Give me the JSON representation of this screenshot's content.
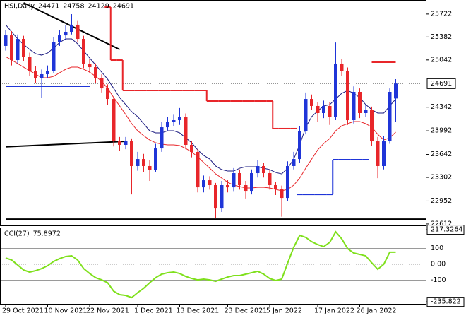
{
  "chart_data": {
    "type": "candlestick",
    "title": "HSI,Daily",
    "categories": [
      "29 Oct 2021",
      null,
      null,
      null,
      null,
      null,
      null,
      "10 Nov 2021",
      null,
      null,
      null,
      null,
      null,
      null,
      "22 Nov 2021",
      null,
      null,
      null,
      null,
      null,
      null,
      null,
      "1 Dec 2021",
      null,
      null,
      null,
      null,
      null,
      null,
      "13 Dec 2021",
      null,
      null,
      null,
      null,
      null,
      null,
      null,
      "23 Dec 2021",
      null,
      null,
      null,
      null,
      null,
      null,
      "5 Jan 2022",
      null,
      null,
      null,
      null,
      null,
      null,
      null,
      "17 Jan 2022",
      null,
      null,
      null,
      null,
      null,
      null,
      "26 Jan 2022",
      null,
      null,
      null,
      null,
      null,
      null
    ],
    "open": [
      25250,
      25406,
      25040,
      25354,
      25092,
      24883,
      24778,
      24831,
      24883,
      25302,
      25406,
      25459,
      25564,
      25354,
      24988,
      24935,
      24778,
      24621,
      24464,
      23836,
      23784,
      23836,
      23470,
      23574,
      23470,
      23417,
      23731,
      24045,
      24129,
      24150,
      24202,
      23784,
      23679,
      23155,
      23260,
      23187,
      22841,
      23187,
      23155,
      23365,
      23187,
      23103,
      23365,
      23470,
      23365,
      23187,
      23124,
      22998,
      23470,
      23574,
      23993,
      24464,
      24360,
      24255,
      24360,
      24202,
      24988,
      24883,
      24150,
      24569,
      24255,
      24307,
      23836,
      23470,
      23836,
      24471
    ],
    "high": [
      25480,
      25470,
      25420,
      25400,
      25150,
      24950,
      24900,
      24960,
      25380,
      25480,
      25560,
      25720,
      25620,
      25400,
      25060,
      24990,
      24830,
      24680,
      24500,
      23900,
      23900,
      23880,
      23680,
      23650,
      23560,
      23800,
      24120,
      24200,
      24230,
      24330,
      24250,
      23840,
      23720,
      23330,
      23320,
      23220,
      23250,
      23260,
      23440,
      23420,
      23250,
      23420,
      23560,
      23520,
      23420,
      23240,
      23180,
      23540,
      23680,
      24060,
      24560,
      24530,
      24420,
      24440,
      24420,
      25300,
      25060,
      24930,
      24650,
      24620,
      24380,
      24350,
      23900,
      23920,
      24620,
      24758
    ],
    "low": [
      25180,
      24960,
      24990,
      25020,
      24800,
      24700,
      24480,
      24780,
      24850,
      25250,
      25340,
      25420,
      25300,
      24920,
      24850,
      24700,
      24560,
      24380,
      23760,
      23700,
      23720,
      23050,
      23400,
      23380,
      23250,
      23380,
      23680,
      24000,
      24060,
      24080,
      23720,
      23600,
      23080,
      23080,
      23120,
      22700,
      22790,
      23080,
      23100,
      23120,
      22990,
      23050,
      23300,
      23300,
      23120,
      23040,
      22720,
      22950,
      23420,
      23520,
      23940,
      24300,
      24120,
      24180,
      24080,
      24150,
      24800,
      24080,
      24100,
      24180,
      24200,
      23770,
      23290,
      23420,
      23800,
      24129
    ],
    "close": [
      25406,
      25040,
      25354,
      25092,
      24883,
      24778,
      24831,
      24883,
      25302,
      25406,
      25459,
      25564,
      25354,
      24988,
      24935,
      24778,
      24621,
      24464,
      23836,
      23784,
      23836,
      23470,
      23574,
      23470,
      23417,
      23731,
      24045,
      24129,
      24150,
      24202,
      23784,
      23679,
      23155,
      23260,
      23187,
      22841,
      23187,
      23155,
      23365,
      23187,
      23103,
      23365,
      23470,
      23365,
      23187,
      23124,
      22998,
      23470,
      23574,
      23993,
      24464,
      24360,
      24255,
      24360,
      24202,
      24988,
      24883,
      24150,
      24569,
      24255,
      24307,
      23836,
      23470,
      23836,
      24569,
      24691
    ],
    "up_color": "#1f35d8",
    "down_color": "#e8262a",
    "ylim": [
      22580,
      25930
    ],
    "yticks": [
      25722,
      25382,
      25042,
      24342,
      23992,
      23642,
      23302,
      22952,
      22612
    ],
    "overlays": [
      {
        "color": "#1a1a80",
        "step": false,
        "values": [
          25564,
          25459,
          25354,
          25270,
          25197,
          25134,
          25113,
          25145,
          25218,
          25302,
          25354,
          25354,
          25281,
          25176,
          25071,
          24967,
          24862,
          24757,
          24621,
          24485,
          24380,
          24276,
          24202,
          24098,
          23993,
          23962,
          23962,
          23993,
          23993,
          23962,
          23888,
          23815,
          23710,
          23627,
          23574,
          23470,
          23417,
          23396,
          23396,
          23438,
          23459,
          23459,
          23459,
          23438,
          23417,
          23375,
          23354,
          23438,
          23574,
          23784,
          24045,
          24202,
          24286,
          24360,
          24380,
          24464,
          24548,
          24590,
          24548,
          24485,
          24380,
          24307,
          24255,
          24255,
          24360,
          24464
        ]
      },
      {
        "color": "#e8262a",
        "step": false,
        "values": [
          25092,
          25040,
          24988,
          24935,
          24883,
          24831,
          24778,
          24778,
          24799,
          24852,
          24904,
          24935,
          24935,
          24904,
          24862,
          24799,
          24726,
          24621,
          24485,
          24360,
          24234,
          24098,
          23993,
          23920,
          23857,
          23815,
          23794,
          23784,
          23784,
          23773,
          23731,
          23679,
          23606,
          23522,
          23438,
          23354,
          23292,
          23229,
          23187,
          23166,
          23145,
          23145,
          23155,
          23155,
          23145,
          23124,
          23103,
          23124,
          23187,
          23292,
          23438,
          23574,
          23710,
          23804,
          23878,
          23993,
          24066,
          24098,
          24129,
          24129,
          24098,
          24045,
          23941,
          23857,
          23888,
          23972
        ]
      },
      {
        "color": "#e8262a",
        "step": true,
        "values": [
          null,
          null,
          null,
          null,
          null,
          null,
          null,
          null,
          null,
          null,
          null,
          null,
          null,
          null,
          null,
          null,
          null,
          25825,
          25040,
          25040,
          24590,
          24590,
          24590,
          24590,
          24590,
          24590,
          24590,
          24590,
          24590,
          24590,
          24590,
          24590,
          24590,
          24590,
          24433,
          24433,
          24433,
          24433,
          24433,
          24433,
          24433,
          24433,
          24433,
          24433,
          24433,
          24025,
          24025,
          24025,
          24025,
          null,
          null,
          null,
          null,
          null,
          null,
          null,
          null,
          null,
          null,
          null,
          null,
          null,
          null,
          null,
          null,
          null
        ]
      },
      {
        "color": "#1f35d8",
        "step": true,
        "values": [
          null,
          null,
          null,
          null,
          null,
          null,
          null,
          null,
          null,
          null,
          null,
          null,
          null,
          null,
          null,
          null,
          null,
          null,
          null,
          null,
          null,
          null,
          null,
          null,
          null,
          null,
          null,
          null,
          null,
          null,
          null,
          null,
          null,
          null,
          null,
          null,
          null,
          null,
          null,
          null,
          null,
          null,
          null,
          null,
          null,
          null,
          null,
          null,
          null,
          23050,
          23050,
          23050,
          23050,
          23050,
          23050,
          23564,
          23564,
          23564,
          23564,
          23564,
          23564,
          null,
          null,
          null,
          null,
          null
        ]
      }
    ],
    "trendlines": [
      {
        "color": "#000000",
        "points": [
          [
            3,
            25888
          ],
          [
            19,
            25197
          ]
        ]
      },
      {
        "color": "#000000",
        "points": [
          [
            0,
            23755
          ],
          [
            20,
            23836
          ]
        ]
      },
      {
        "color": "#000000",
        "points": [
          [
            0,
            22684
          ],
          [
            70,
            22684
          ]
        ]
      },
      {
        "color": "#1f35d8",
        "points": [
          [
            0,
            24653
          ],
          [
            14,
            24653
          ]
        ]
      },
      {
        "color": "#e8262a",
        "points": [
          [
            61,
            25009
          ],
          [
            65,
            25009
          ]
        ]
      }
    ],
    "cci": {
      "name": "CCI(27)",
      "color": "#7fe01c",
      "values": [
        40,
        27,
        -4,
        -36,
        -49,
        -40,
        -27,
        -9,
        18,
        36,
        49,
        53,
        27,
        -27,
        -58,
        -84,
        -98,
        -116,
        -169,
        -191,
        -196,
        -209,
        -178,
        -151,
        -116,
        -84,
        -62,
        -53,
        -49,
        -58,
        -76,
        -89,
        -98,
        -93,
        -98,
        -107,
        -93,
        -80,
        -71,
        -71,
        -62,
        -53,
        -44,
        -62,
        -89,
        -102,
        -93,
        9,
        107,
        182,
        169,
        142,
        124,
        111,
        138,
        204,
        160,
        98,
        71,
        62,
        53,
        9,
        -31,
        0,
        76,
        75.8972
      ],
      "ylim": [
        -253,
        231
      ],
      "yticks": [
        217.3264,
        100,
        {
          "value": 0,
          "label": "0.00"
        },
        -100,
        -235.822
      ]
    }
  }
}
